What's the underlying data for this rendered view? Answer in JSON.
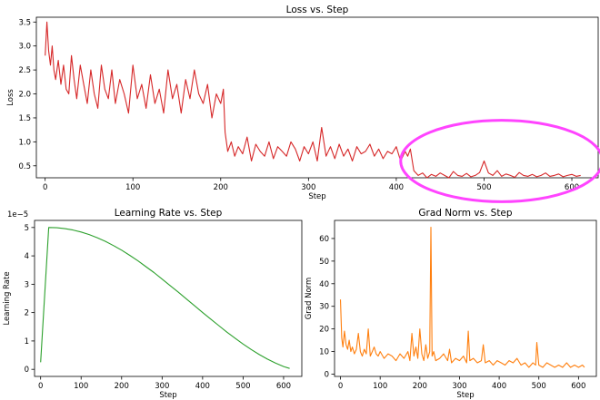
{
  "chart_data": [
    {
      "type": "line",
      "title": "Loss vs. Step",
      "xlabel": "Step",
      "ylabel": "Loss",
      "xlim": [
        -10,
        630
      ],
      "ylim": [
        0.25,
        3.6
      ],
      "xticks": [
        0,
        100,
        200,
        300,
        400,
        500,
        600
      ],
      "yticks": [
        0.5,
        1.0,
        1.5,
        2.0,
        2.5,
        3.0,
        3.5
      ],
      "ytick_labels": [
        "0.5",
        "1.0",
        "1.5",
        "2.0",
        "2.5",
        "3.0",
        "3.5"
      ],
      "series": [
        {
          "color": "#d62728",
          "x": [
            0,
            2,
            4,
            6,
            8,
            10,
            12,
            15,
            18,
            21,
            24,
            27,
            30,
            33,
            36,
            40,
            44,
            48,
            52,
            56,
            60,
            64,
            68,
            72,
            76,
            80,
            85,
            90,
            95,
            100,
            105,
            110,
            115,
            120,
            125,
            130,
            135,
            140,
            145,
            150,
            155,
            160,
            165,
            170,
            175,
            180,
            185,
            190,
            195,
            200,
            203,
            205,
            208,
            212,
            216,
            220,
            225,
            230,
            235,
            240,
            245,
            250,
            255,
            260,
            265,
            270,
            275,
            280,
            285,
            290,
            295,
            300,
            305,
            310,
            315,
            320,
            325,
            330,
            335,
            340,
            345,
            350,
            355,
            360,
            365,
            370,
            375,
            380,
            385,
            390,
            395,
            400,
            405,
            410,
            413,
            416,
            420,
            425,
            430,
            435,
            440,
            445,
            450,
            455,
            460,
            465,
            470,
            475,
            480,
            485,
            490,
            495,
            500,
            505,
            510,
            515,
            520,
            525,
            530,
            535,
            540,
            545,
            550,
            555,
            560,
            565,
            570,
            575,
            580,
            585,
            590,
            595,
            600,
            605,
            610
          ],
          "y": [
            2.8,
            3.5,
            2.9,
            2.6,
            3.0,
            2.5,
            2.3,
            2.7,
            2.2,
            2.6,
            2.1,
            2.0,
            2.8,
            2.3,
            1.9,
            2.6,
            2.2,
            1.8,
            2.5,
            2.0,
            1.7,
            2.6,
            2.1,
            1.9,
            2.5,
            1.8,
            2.3,
            2.0,
            1.6,
            2.6,
            1.9,
            2.2,
            1.7,
            2.4,
            1.8,
            2.1,
            1.6,
            2.5,
            1.9,
            2.2,
            1.6,
            2.3,
            1.9,
            2.5,
            2.0,
            1.8,
            2.2,
            1.5,
            2.0,
            1.8,
            2.1,
            1.2,
            0.8,
            1.0,
            0.7,
            0.9,
            0.75,
            1.1,
            0.6,
            0.95,
            0.8,
            0.7,
            1.0,
            0.65,
            0.9,
            0.8,
            0.7,
            1.0,
            0.85,
            0.6,
            0.9,
            0.75,
            1.0,
            0.6,
            1.3,
            0.7,
            0.9,
            0.65,
            0.95,
            0.7,
            0.85,
            0.6,
            0.9,
            0.75,
            0.8,
            0.95,
            0.7,
            0.85,
            0.65,
            0.8,
            0.75,
            0.9,
            0.6,
            0.8,
            0.7,
            0.85,
            0.4,
            0.3,
            0.35,
            0.25,
            0.32,
            0.28,
            0.35,
            0.3,
            0.25,
            0.38,
            0.3,
            0.28,
            0.34,
            0.27,
            0.3,
            0.36,
            0.6,
            0.35,
            0.3,
            0.4,
            0.28,
            0.33,
            0.3,
            0.26,
            0.36,
            0.3,
            0.28,
            0.32,
            0.27,
            0.3,
            0.35,
            0.28,
            0.3,
            0.33,
            0.27,
            0.3,
            0.32,
            0.28,
            0.3
          ]
        }
      ],
      "annotation": {
        "type": "ellipse",
        "color": "#ff44ff",
        "x_range": [
          405,
          635
        ],
        "y_range": [
          -0.25,
          1.45
        ]
      }
    },
    {
      "type": "line",
      "title": "Learning Rate vs. Step",
      "xlabel": "Step",
      "ylabel": "Learning Rate",
      "offset_text": "1e−5",
      "xlim": [
        -15,
        645
      ],
      "ylim": [
        -0.25,
        5.25
      ],
      "xticks": [
        0,
        100,
        200,
        300,
        400,
        500,
        600
      ],
      "yticks": [
        0,
        1,
        2,
        3,
        4,
        5
      ],
      "ytick_labels": [
        "0",
        "1",
        "2",
        "3",
        "4",
        "5"
      ],
      "series": [
        {
          "color": "#2ca02c",
          "x": [
            0,
            20,
            40,
            60,
            80,
            100,
            120,
            140,
            160,
            180,
            200,
            220,
            240,
            260,
            280,
            300,
            320,
            340,
            360,
            380,
            400,
            420,
            440,
            460,
            480,
            500,
            520,
            540,
            560,
            580,
            600,
            615
          ],
          "y": [
            0.25,
            5.0,
            4.99,
            4.96,
            4.91,
            4.84,
            4.75,
            4.64,
            4.51,
            4.36,
            4.2,
            4.02,
            3.83,
            3.62,
            3.41,
            3.18,
            2.95,
            2.72,
            2.48,
            2.24,
            2.0,
            1.77,
            1.54,
            1.31,
            1.1,
            0.89,
            0.7,
            0.52,
            0.36,
            0.22,
            0.1,
            0.03
          ]
        }
      ]
    },
    {
      "type": "line",
      "title": "Grad Norm vs. Step",
      "xlabel": "Step",
      "ylabel": "Grad Norm",
      "xlim": [
        -15,
        645
      ],
      "ylim": [
        -1,
        68
      ],
      "xticks": [
        0,
        100,
        200,
        300,
        400,
        500,
        600
      ],
      "yticks": [
        0,
        10,
        20,
        30,
        40,
        50,
        60
      ],
      "ytick_labels": [
        "0",
        "10",
        "20",
        "30",
        "40",
        "50",
        "60"
      ],
      "series": [
        {
          "color": "#ff7f0e",
          "x": [
            0,
            3,
            6,
            10,
            14,
            18,
            22,
            26,
            30,
            35,
            40,
            45,
            50,
            55,
            60,
            65,
            70,
            75,
            80,
            85,
            90,
            95,
            100,
            110,
            120,
            130,
            140,
            150,
            160,
            170,
            175,
            180,
            185,
            190,
            195,
            200,
            205,
            210,
            215,
            220,
            225,
            228,
            231,
            235,
            240,
            250,
            260,
            270,
            275,
            280,
            290,
            300,
            310,
            318,
            322,
            326,
            335,
            345,
            355,
            360,
            365,
            375,
            385,
            395,
            405,
            415,
            425,
            435,
            445,
            455,
            465,
            475,
            485,
            492,
            495,
            500,
            510,
            520,
            530,
            540,
            550,
            560,
            570,
            580,
            590,
            600,
            610,
            615
          ],
          "y": [
            33,
            16,
            12,
            19,
            13,
            11,
            15,
            10,
            12,
            9,
            11,
            18,
            10,
            8,
            11,
            9,
            20,
            8,
            10,
            12,
            9,
            8,
            10,
            7,
            9,
            8,
            6,
            9,
            7,
            10,
            6,
            18,
            8,
            12,
            7,
            20,
            9,
            6,
            13,
            7,
            10,
            65,
            8,
            10,
            6,
            7,
            9,
            6,
            11,
            5,
            7,
            6,
            8,
            5,
            19,
            6,
            7,
            5,
            6,
            13,
            5,
            6,
            4,
            6,
            5,
            4,
            6,
            5,
            7,
            4,
            5,
            3,
            5,
            4,
            14,
            4,
            3,
            5,
            4,
            3,
            4,
            3,
            5,
            3,
            4,
            3,
            4,
            3
          ]
        }
      ]
    }
  ]
}
